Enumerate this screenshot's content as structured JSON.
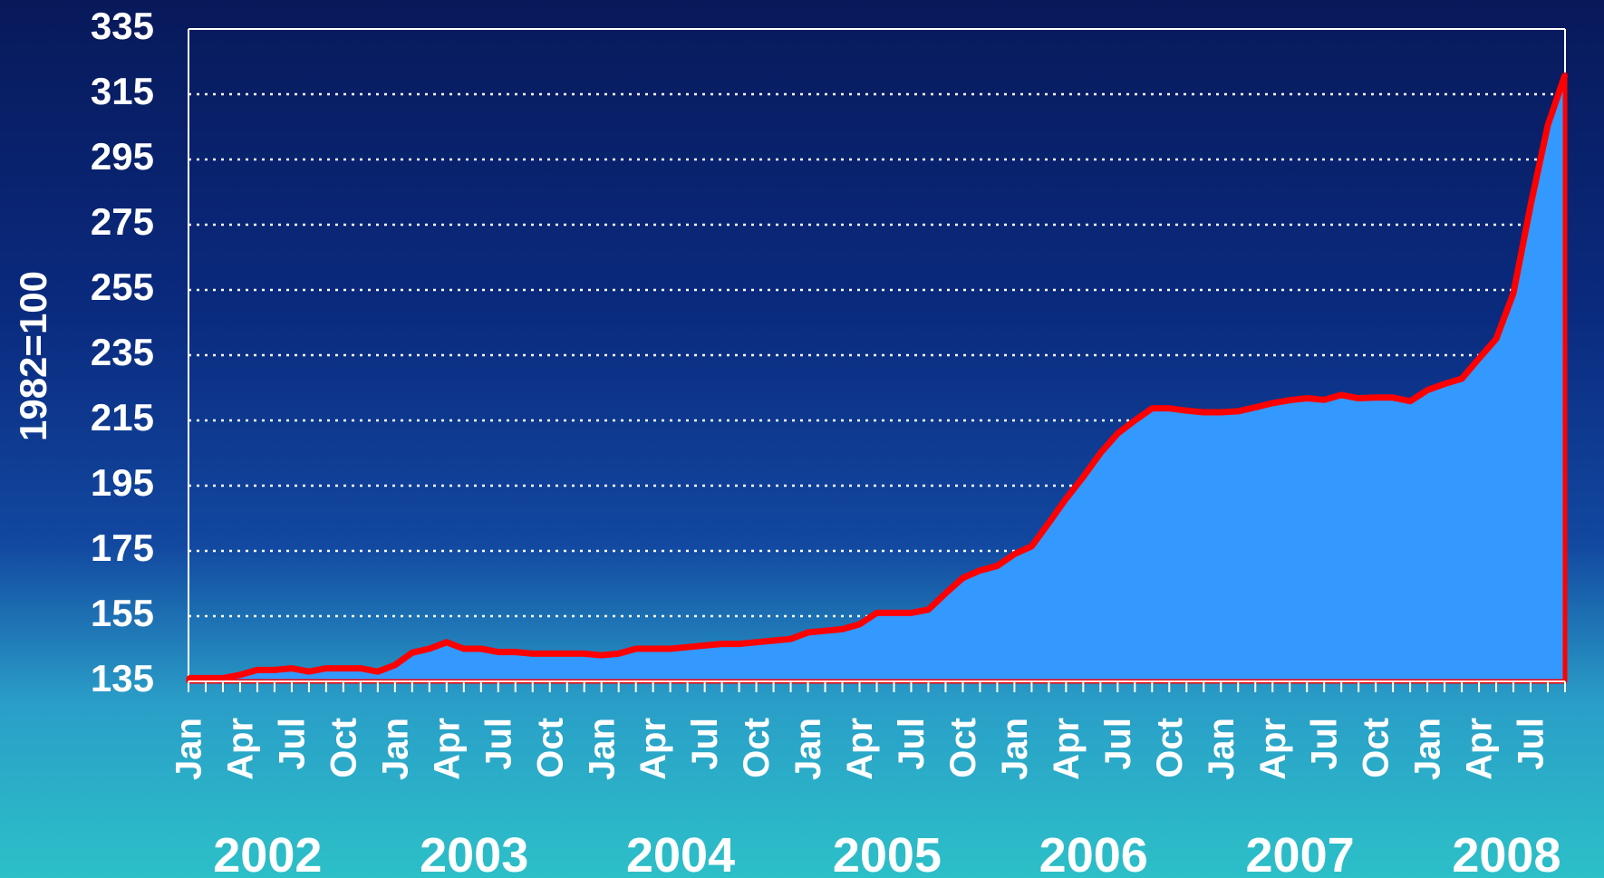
{
  "chart_data": {
    "type": "area",
    "y_label": "1982=100",
    "categories": [
      "Jan",
      null,
      null,
      "Apr",
      null,
      null,
      "Jul",
      null,
      null,
      "Oct",
      null,
      null,
      "Jan",
      null,
      null,
      "Apr",
      null,
      null,
      "Jul",
      null,
      null,
      "Oct",
      null,
      null,
      "Jan",
      null,
      null,
      "Apr",
      null,
      null,
      "Jul",
      null,
      null,
      "Oct",
      null,
      null,
      "Jan",
      null,
      null,
      "Apr",
      null,
      null,
      "Jul",
      null,
      null,
      "Oct",
      null,
      null,
      "Jan",
      null,
      null,
      "Apr",
      null,
      null,
      "Jul",
      null,
      null,
      "Oct",
      null,
      null,
      "Jan",
      null,
      null,
      "Apr",
      null,
      null,
      "Jul",
      null,
      null,
      "Oct",
      null,
      null,
      "Jan",
      null,
      null,
      "Apr",
      null,
      null,
      "Jul",
      null,
      null
    ],
    "year_labels": [
      "2002",
      "2003",
      "2004",
      "2005",
      "2006",
      "2007",
      "2008"
    ],
    "series": [
      {
        "color": "#3399ff",
        "line_color": "#ff0000",
        "values": [
          136,
          136,
          136,
          137,
          138.5,
          138.5,
          139,
          138,
          139,
          139,
          139,
          138,
          140,
          143.8,
          145,
          147,
          145,
          145,
          144,
          144,
          143.5,
          143.5,
          143.5,
          143.5,
          143,
          143.5,
          145,
          145,
          145,
          145.5,
          146,
          146.5,
          146.5,
          147,
          147.5,
          148,
          150,
          150.5,
          151,
          152.5,
          156,
          156,
          156,
          157,
          162,
          166.7,
          169,
          170.4,
          174,
          176.4,
          183.6,
          191,
          197.7,
          205,
          211,
          215,
          218.7,
          218.7,
          218,
          217.5,
          217.5,
          217.8,
          219,
          220.3,
          221.2,
          221.8,
          221.3,
          222.8,
          221.8,
          222,
          222,
          220.9,
          224.3,
          226.2,
          227.8,
          234,
          240,
          254,
          281,
          305.5,
          321
        ]
      }
    ],
    "ylim": [
      135,
      335
    ],
    "yticks": [
      135,
      155,
      175,
      195,
      215,
      235,
      255,
      275,
      295,
      315,
      335
    ],
    "grid": true
  }
}
